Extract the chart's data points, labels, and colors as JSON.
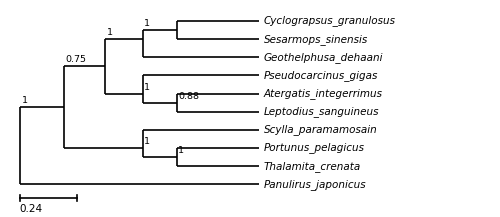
{
  "taxa": [
    "Cyclograpsus_granulosus",
    "Sesarmops_sinensis",
    "Geothelphusa_dehaani",
    "Pseudocarcinus_gigas",
    "Atergatis_integerrimus",
    "Leptodius_sanguineus",
    "Scylla_paramamosain",
    "Portunus_pelagicus",
    "Thalamita_crenata",
    "Panulirus_japonicus"
  ],
  "background_color": "#ffffff",
  "line_color": "#000000",
  "text_color": "#000000",
  "scale_bar_label": "0.24",
  "font_size": 7.5,
  "bootstrap_fontsize": 6.8,
  "lw": 1.2
}
